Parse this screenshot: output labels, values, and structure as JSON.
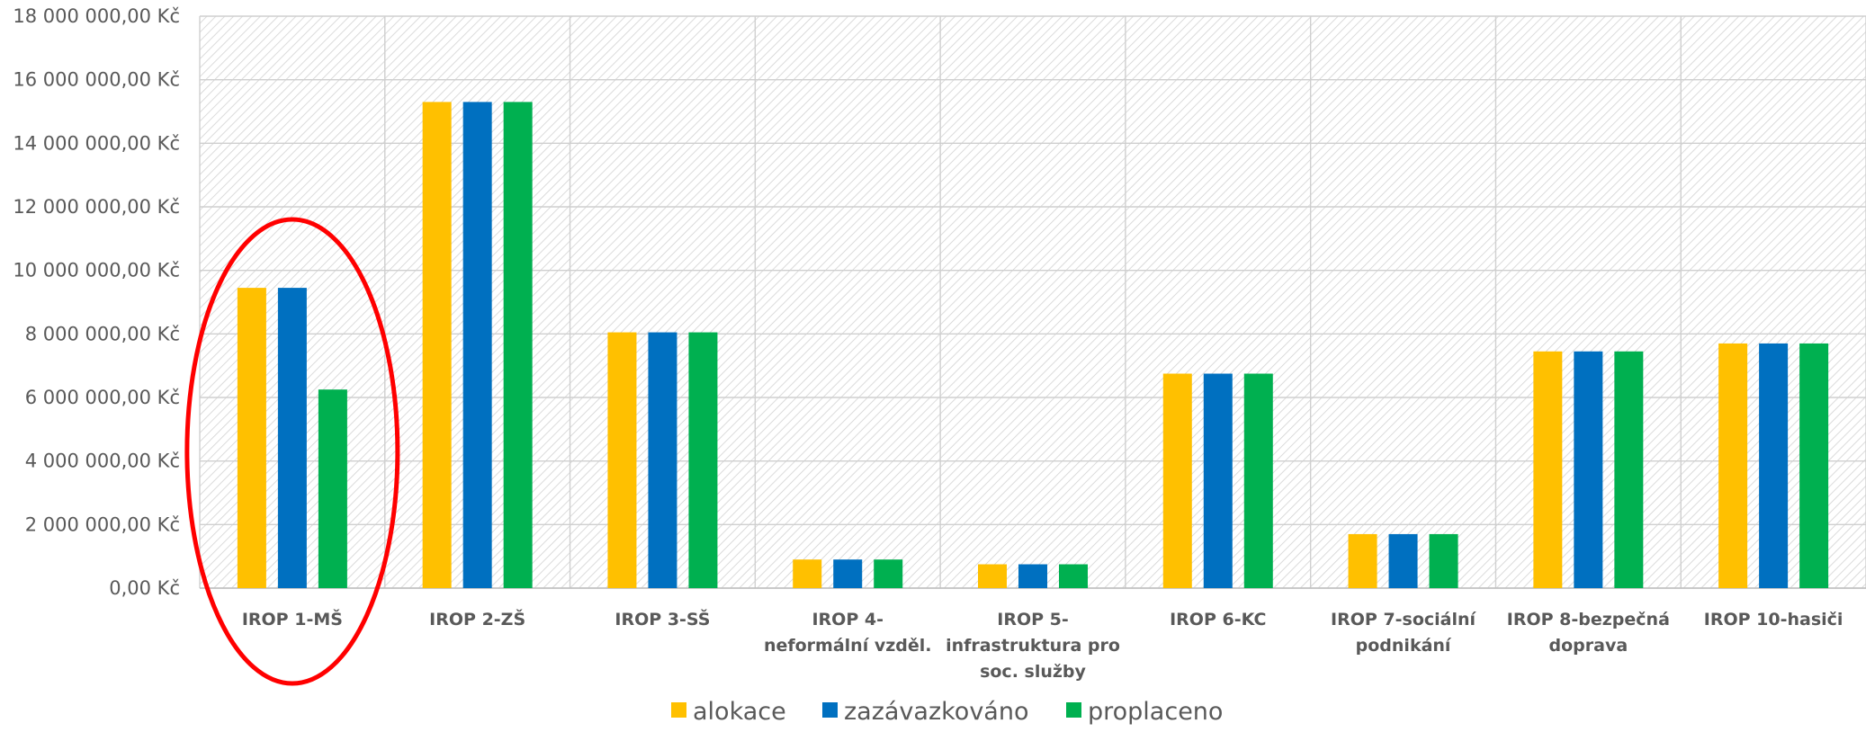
{
  "chart_data": {
    "type": "bar",
    "title": "",
    "xlabel": "",
    "ylabel": "",
    "ylim": [
      0,
      18000000
    ],
    "y_tick_step": 2000000,
    "y_tick_labels": [
      "0,00 Kč",
      "2 000 000,00 Kč",
      "4 000 000,00 Kč",
      "6 000 000,00 Kč",
      "8 000 000,00 Kč",
      "10 000 000,00 Kč",
      "12 000 000,00 Kč",
      "14 000 000,00 Kč",
      "16 000 000,00 Kč",
      "18 000 000,00 Kč"
    ],
    "grid": true,
    "plot_background": "diagonal-hatch",
    "legend_position": "bottom",
    "categories": [
      [
        "IROP 1-MŠ"
      ],
      [
        "IROP 2-ZŠ"
      ],
      [
        "IROP 3-SŠ"
      ],
      [
        "IROP 4-",
        "neformální vzděl."
      ],
      [
        "IROP 5-",
        "infrastruktura pro",
        "soc. služby"
      ],
      [
        "IROP 6-KC"
      ],
      [
        "IROP 7-sociální",
        "podnikání"
      ],
      [
        "IROP 8-bezpečná",
        "doprava"
      ],
      [
        "IROP 10-hasiči"
      ]
    ],
    "series": [
      {
        "name": "alokace",
        "color": "#FFC000",
        "values": [
          9450000,
          15300000,
          8050000,
          900000,
          750000,
          6750000,
          1700000,
          7450000,
          7700000
        ]
      },
      {
        "name": "zazávazkováno",
        "color": "#0070C0",
        "values": [
          9450000,
          15300000,
          8050000,
          900000,
          750000,
          6750000,
          1700000,
          7450000,
          7700000
        ]
      },
      {
        "name": "proplaceno",
        "color": "#00B050",
        "values": [
          6250000,
          15300000,
          8050000,
          900000,
          750000,
          6750000,
          1700000,
          7450000,
          7700000
        ]
      }
    ],
    "annotations": [
      {
        "type": "ellipse",
        "category_index": 0,
        "color": "#FF0000"
      }
    ]
  }
}
